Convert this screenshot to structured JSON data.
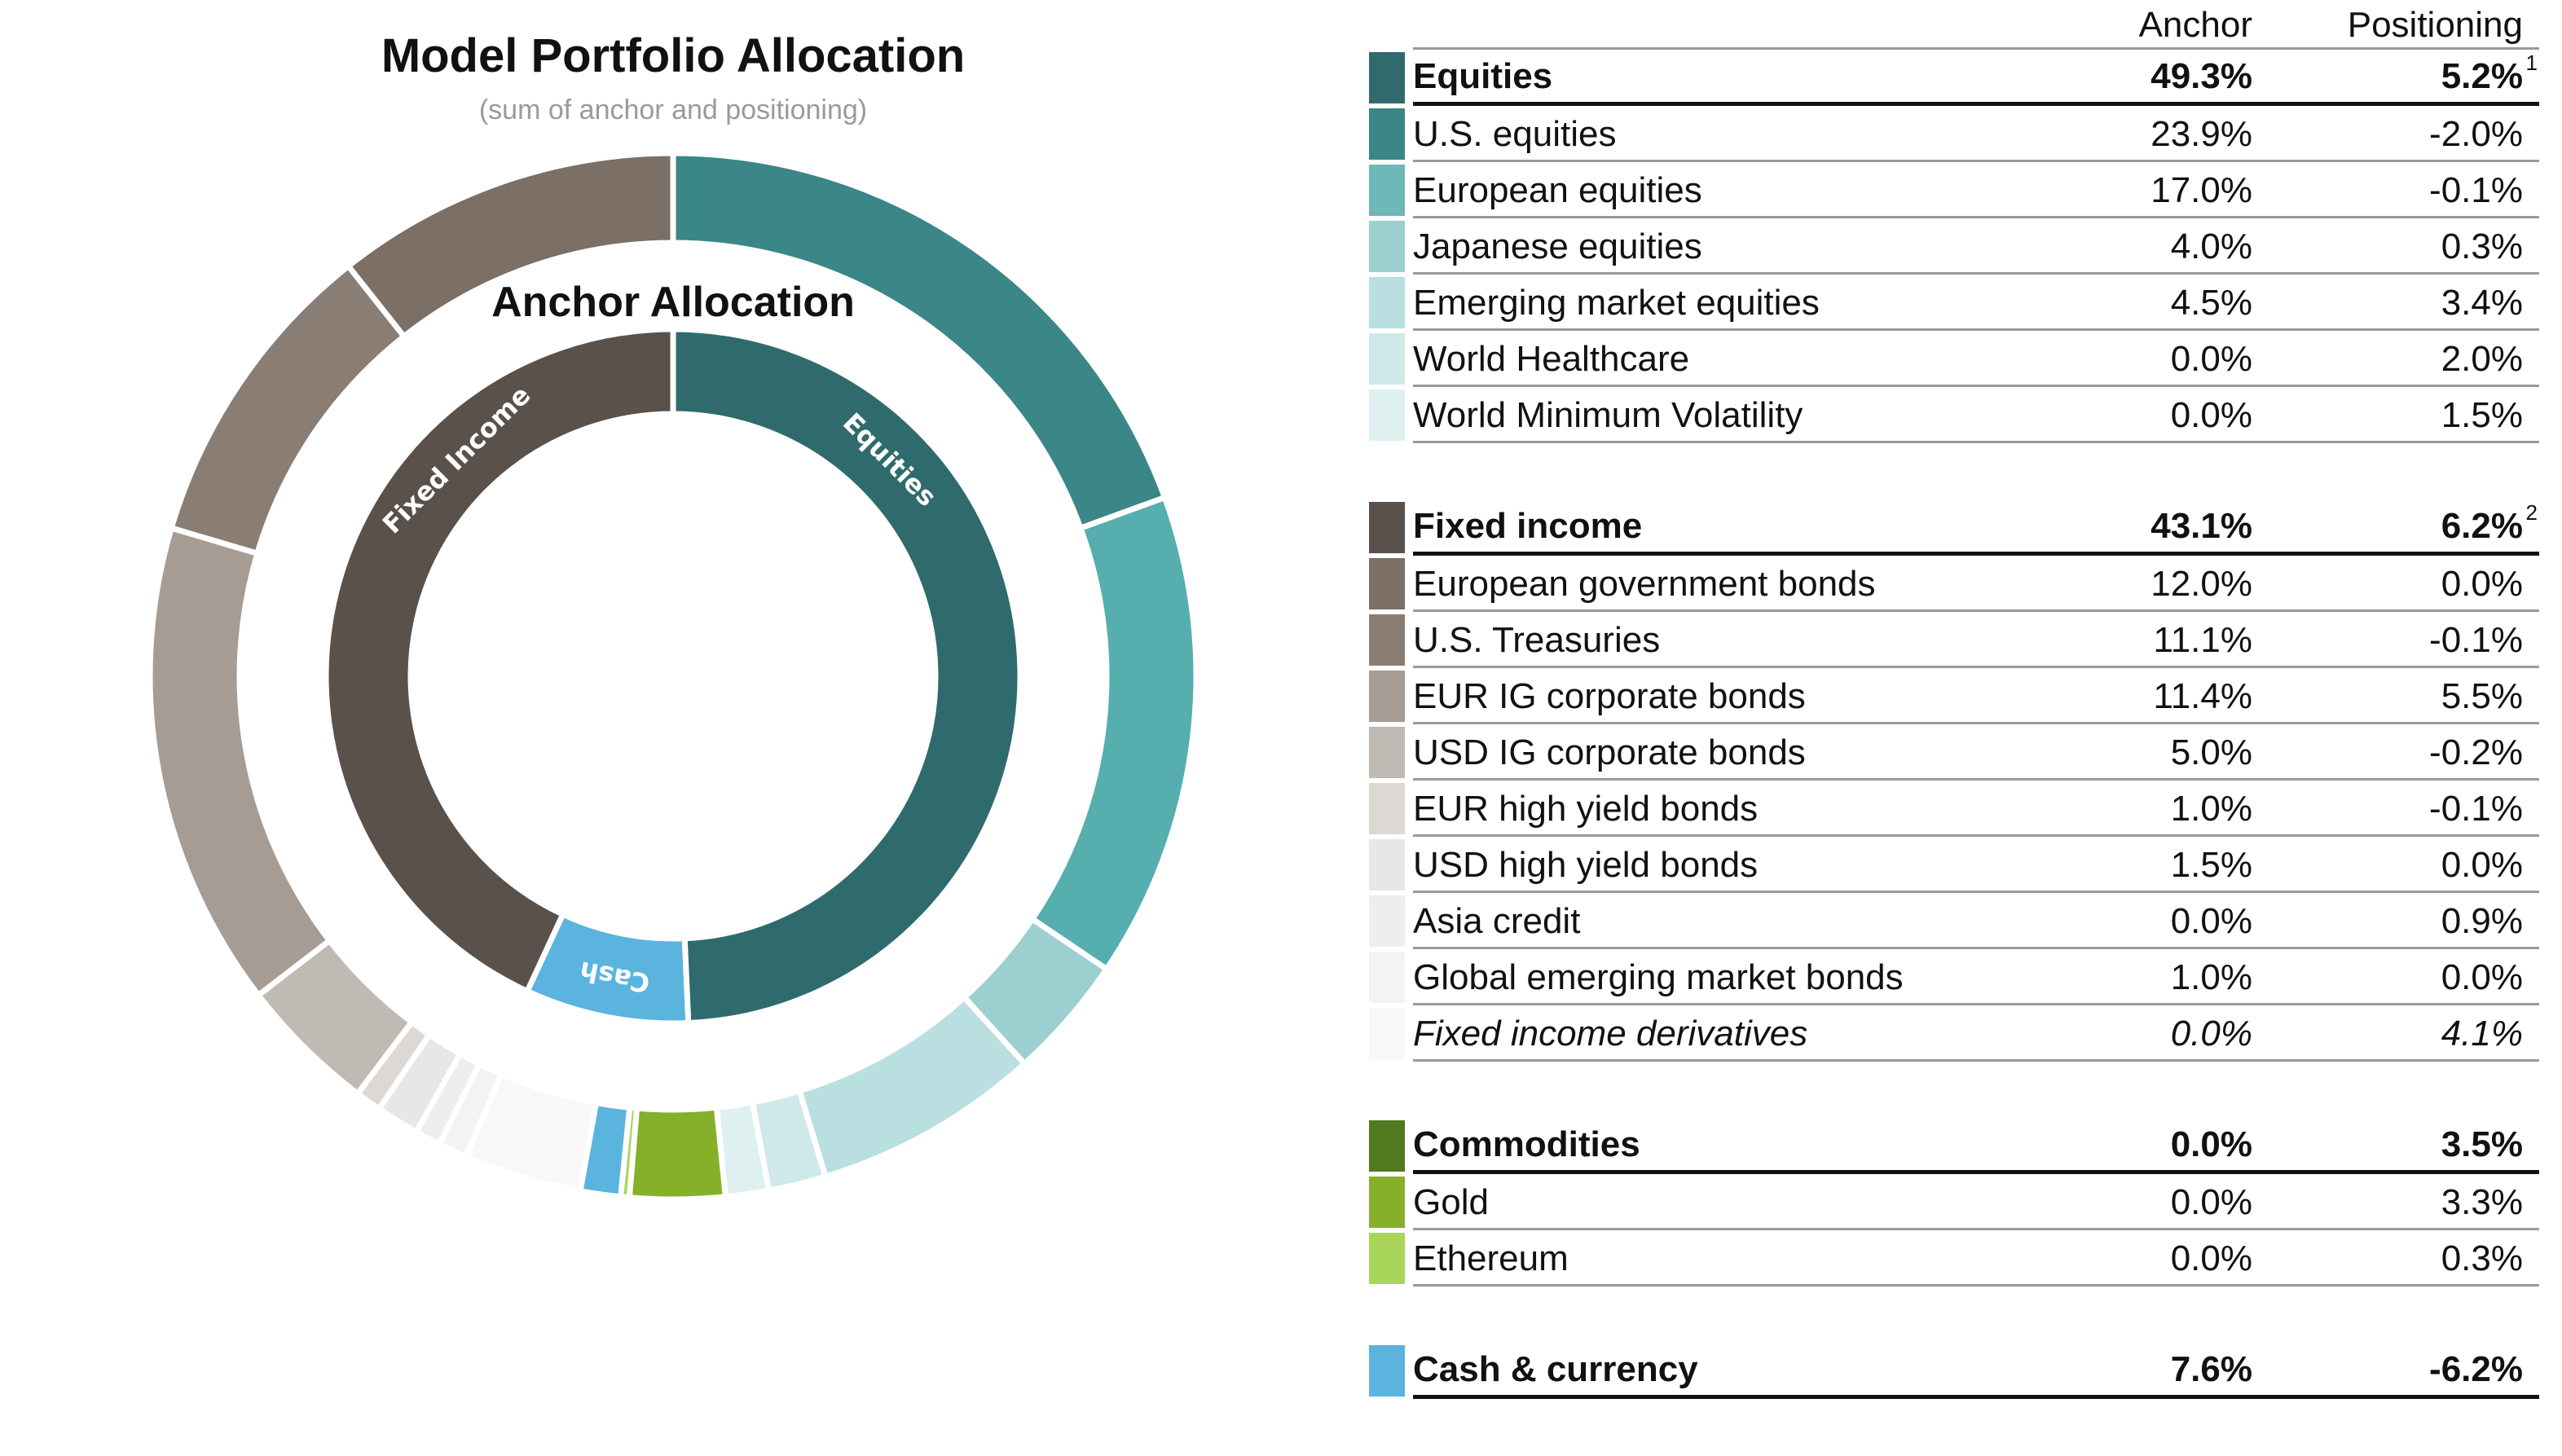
{
  "chart_data": {
    "type": "pie",
    "title": "Model Portfolio Allocation",
    "subtitle": "(sum of anchor and positioning)",
    "inner_title": "Anchor Allocation",
    "inner_ring": [
      {
        "name": "Equities",
        "label": "Equities",
        "value": 49.3,
        "color": "#2f6b6c"
      },
      {
        "name": "Cash",
        "label": "Cash",
        "value": 7.6,
        "color": "#5ab4de"
      },
      {
        "name": "Fixed Income",
        "label": "Fixed Income",
        "value": 43.1,
        "color": "#5a514b"
      }
    ],
    "outer_ring": [
      {
        "name": "U.S. equities",
        "value": 21.9,
        "color": "#3b8686"
      },
      {
        "name": "European equities",
        "value": 16.9,
        "color": "#56aeae"
      },
      {
        "name": "Japanese equities",
        "value": 4.3,
        "color": "#9ccfd0"
      },
      {
        "name": "Emerging market equities",
        "value": 7.9,
        "color": "#b9dfe0"
      },
      {
        "name": "World Healthcare",
        "value": 2.0,
        "color": "#cfe8e9"
      },
      {
        "name": "World Minimum Volatility",
        "value": 1.5,
        "color": "#dff0f0"
      },
      {
        "name": "Gold",
        "value": 3.3,
        "color": "#86b02a"
      },
      {
        "name": "Ethereum",
        "value": 0.3,
        "color": "#a9d55a"
      },
      {
        "name": "Cash & currency",
        "value": 1.4,
        "color": "#5ab4de"
      },
      {
        "name": "Fixed income derivatives",
        "value": 4.1,
        "color": "#f8f8f8"
      },
      {
        "name": "Global emerging market bonds",
        "value": 1.0,
        "color": "#f3f3f3"
      },
      {
        "name": "Asia credit",
        "value": 0.9,
        "color": "#eeeeee"
      },
      {
        "name": "USD high yield bonds",
        "value": 1.5,
        "color": "#e9e7e5"
      },
      {
        "name": "EUR high yield bonds",
        "value": 0.9,
        "color": "#dcd8d4"
      },
      {
        "name": "USD IG corporate bonds",
        "value": 4.8,
        "color": "#c0bab4"
      },
      {
        "name": "EUR IG corporate bonds",
        "value": 16.9,
        "color": "#a69c93"
      },
      {
        "name": "U.S. Treasuries",
        "value": 11.0,
        "color": "#8a7e74"
      },
      {
        "name": "European government bonds",
        "value": 12.0,
        "color": "#7b6f66"
      }
    ]
  },
  "table": {
    "col_anchor": "Anchor",
    "col_positioning": "Positioning",
    "groups": [
      {
        "rows": [
          {
            "label": "Equities",
            "anchor": "49.3%",
            "positioning": "5.2%",
            "note": "1",
            "color": "#2f6b6c",
            "head": true
          },
          {
            "label": "U.S. equities",
            "anchor": "23.9%",
            "positioning": "-2.0%",
            "color": "#3b8686"
          },
          {
            "label": "European equities",
            "anchor": "17.0%",
            "positioning": "-0.1%",
            "color": "#6fb8b8"
          },
          {
            "label": "Japanese equities",
            "anchor": "4.0%",
            "positioning": "0.3%",
            "color": "#9ccfd0"
          },
          {
            "label": "Emerging market equities",
            "anchor": "4.5%",
            "positioning": "3.4%",
            "color": "#b9dfe0"
          },
          {
            "label": "World Healthcare",
            "anchor": "0.0%",
            "positioning": "2.0%",
            "color": "#cfe8e9"
          },
          {
            "label": "World Minimum Volatility",
            "anchor": "0.0%",
            "positioning": "1.5%",
            "color": "#dff0f0"
          }
        ]
      },
      {
        "rows": [
          {
            "label": "Fixed income",
            "anchor": "43.1%",
            "positioning": "6.2%",
            "note": "2",
            "color": "#5a514b",
            "head": true
          },
          {
            "label": "European government bonds",
            "anchor": "12.0%",
            "positioning": "0.0%",
            "color": "#7b6f66"
          },
          {
            "label": "U.S. Treasuries",
            "anchor": "11.1%",
            "positioning": "-0.1%",
            "color": "#8a7e74"
          },
          {
            "label": "EUR IG corporate bonds",
            "anchor": "11.4%",
            "positioning": "5.5%",
            "color": "#a69c93"
          },
          {
            "label": "USD IG corporate bonds",
            "anchor": "5.0%",
            "positioning": "-0.2%",
            "color": "#c0bab4"
          },
          {
            "label": "EUR high yield bonds",
            "anchor": "1.0%",
            "positioning": "-0.1%",
            "color": "#dcd8d4"
          },
          {
            "label": "USD high yield bonds",
            "anchor": "1.5%",
            "positioning": "0.0%",
            "color": "#e9e7e5"
          },
          {
            "label": "Asia credit",
            "anchor": "0.0%",
            "positioning": "0.9%",
            "color": "#eeeeee"
          },
          {
            "label": "Global emerging market bonds",
            "anchor": "1.0%",
            "positioning": "0.0%",
            "color": "#f3f3f3"
          },
          {
            "label": "Fixed income derivatives",
            "anchor": "0.0%",
            "positioning": "4.1%",
            "color": "#f8f8f8",
            "italic": true
          }
        ]
      },
      {
        "rows": [
          {
            "label": "Commodities",
            "anchor": "0.0%",
            "positioning": "3.5%",
            "color": "#4f7a1e",
            "head": true
          },
          {
            "label": "Gold",
            "anchor": "0.0%",
            "positioning": "3.3%",
            "color": "#86b02a"
          },
          {
            "label": "Ethereum",
            "anchor": "0.0%",
            "positioning": "0.3%",
            "color": "#a9d55a"
          }
        ]
      },
      {
        "rows": [
          {
            "label": "Cash & currency",
            "anchor": "7.6%",
            "positioning": "-6.2%",
            "color": "#5ab4de",
            "head": true
          }
        ]
      }
    ]
  }
}
